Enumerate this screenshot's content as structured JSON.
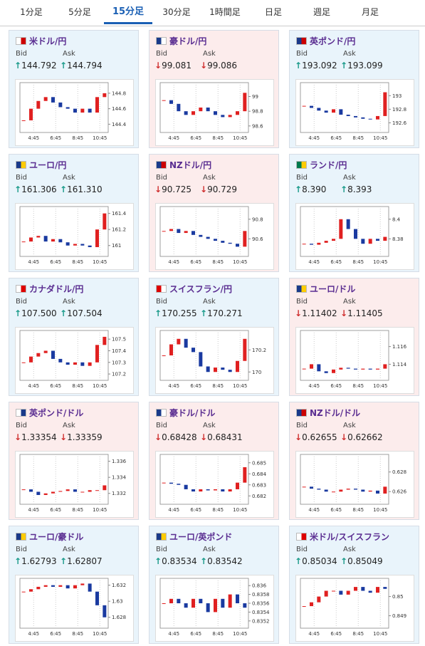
{
  "tabs": [
    "1分足",
    "5分足",
    "15分足",
    "30分足",
    "1時間足",
    "日足",
    "週足",
    "月足"
  ],
  "active_tab": 2,
  "bid_label": "Bid",
  "ask_label": "Ask",
  "xticks": [
    "4:45",
    "6:45",
    "8:45",
    "10:45"
  ],
  "cards": [
    {
      "name": "米ドル/円",
      "arrow": "↑",
      "bid": "144.792",
      "ask": "144.794",
      "ylim": [
        144.33,
        144.9
      ],
      "yticks": [
        144.8,
        144.6,
        144.4
      ],
      "closes": [
        144.45,
        144.6,
        144.7,
        144.75,
        144.68,
        144.62,
        144.6,
        144.55,
        144.6,
        144.55,
        144.75,
        144.8
      ]
    },
    {
      "name": "豪ドル/円",
      "arrow": "↓",
      "bid": "99.081",
      "ask": "99.086",
      "ylim": [
        98.55,
        99.15
      ],
      "yticks": [
        99,
        98.8,
        98.6
      ],
      "closes": [
        98.95,
        98.9,
        98.8,
        98.75,
        98.8,
        98.85,
        98.8,
        98.75,
        98.72,
        98.75,
        98.8,
        99.05
      ]
    },
    {
      "name": "英ポンド/円",
      "arrow": "↑",
      "bid": "193.092",
      "ask": "193.099",
      "ylim": [
        192.5,
        193.15
      ],
      "yticks": [
        193,
        192.8,
        192.6
      ],
      "closes": [
        192.85,
        192.82,
        192.78,
        192.75,
        192.8,
        192.72,
        192.7,
        192.68,
        192.66,
        192.65,
        192.7,
        193.05
      ]
    },
    {
      "name": "ユーロ/円",
      "arrow": "↑",
      "bid": "161.306",
      "ask": "161.310",
      "ylim": [
        160.9,
        161.45
      ],
      "yticks": [
        161.4,
        161.2,
        161
      ],
      "closes": [
        161.05,
        161.1,
        161.12,
        161.05,
        161.08,
        161.04,
        161.0,
        161.02,
        161.0,
        160.98,
        161.2,
        161.4
      ]
    },
    {
      "name": "NZドル/円",
      "arrow": "↓",
      "bid": "90.725",
      "ask": "90.729",
      "ylim": [
        90.45,
        90.9
      ],
      "yticks": [
        90.8,
        90.6
      ],
      "closes": [
        90.68,
        90.7,
        90.66,
        90.68,
        90.64,
        90.62,
        90.6,
        90.58,
        90.56,
        90.55,
        90.52,
        90.68
      ]
    },
    {
      "name": "ランド/円",
      "arrow": "↑",
      "bid": "8.390",
      "ask": "8.393",
      "ylim": [
        8.365,
        8.41
      ],
      "yticks": [
        8.4,
        8.38
      ],
      "closes": [
        8.375,
        8.374,
        8.376,
        8.378,
        8.38,
        8.4,
        8.39,
        8.38,
        8.375,
        8.38,
        8.378,
        8.382
      ]
    },
    {
      "name": "カナダドル/円",
      "arrow": "↑",
      "bid": "107.500",
      "ask": "107.504",
      "ylim": [
        107.17,
        107.55
      ],
      "yticks": [
        107.5,
        107.4,
        107.3,
        107.2
      ],
      "closes": [
        107.3,
        107.35,
        107.38,
        107.4,
        107.33,
        107.3,
        107.28,
        107.3,
        107.27,
        107.3,
        107.45,
        107.52
      ]
    },
    {
      "name": "スイスフラン/円",
      "arrow": "↑",
      "bid": "170.255",
      "ask": "170.271",
      "ylim": [
        169.95,
        170.35
      ],
      "yticks": [
        170.2,
        170
      ],
      "closes": [
        170.15,
        170.25,
        170.3,
        170.22,
        170.18,
        170.05,
        170.0,
        170.04,
        170.02,
        170.0,
        170.1,
        170.3
      ]
    },
    {
      "name": "ユーロ/ドル",
      "arrow": "↓",
      "bid": "1.11402",
      "ask": "1.11405",
      "ylim": [
        1.1125,
        1.1175
      ],
      "yticks": [
        1.116,
        1.114
      ],
      "closes": [
        1.1135,
        1.114,
        1.1132,
        1.113,
        1.1134,
        1.1136,
        1.1135,
        1.1134,
        1.1135,
        1.1134,
        1.1135,
        1.114
      ]
    },
    {
      "name": "英ポンド/ドル",
      "arrow": "↓",
      "bid": "1.33354",
      "ask": "1.33359",
      "ylim": [
        1.331,
        1.3365
      ],
      "yticks": [
        1.336,
        1.334,
        1.332
      ],
      "closes": [
        1.3325,
        1.3322,
        1.3318,
        1.332,
        1.3322,
        1.3323,
        1.3325,
        1.3322,
        1.3322,
        1.3324,
        1.3324,
        1.333
      ]
    },
    {
      "name": "豪ドル/ドル",
      "arrow": "↓",
      "bid": "0.68428",
      "ask": "0.68431",
      "ylim": [
        0.6815,
        0.6855
      ],
      "yticks": [
        0.685,
        0.684,
        0.683,
        0.682
      ],
      "closes": [
        0.6832,
        0.6831,
        0.683,
        0.6826,
        0.6824,
        0.6826,
        0.6825,
        0.6826,
        0.6824,
        0.6826,
        0.6832,
        0.6846
      ]
    },
    {
      "name": "NZドル/ドル",
      "arrow": "↓",
      "bid": "0.62655",
      "ask": "0.62662",
      "ylim": [
        0.625,
        0.6295
      ],
      "yticks": [
        0.628,
        0.626
      ],
      "closes": [
        0.6265,
        0.6263,
        0.6262,
        0.626,
        0.626,
        0.6262,
        0.6263,
        0.6262,
        0.626,
        0.6261,
        0.6258,
        0.6265
      ]
    },
    {
      "name": "ユーロ/豪ドル",
      "arrow": "↑",
      "bid": "1.62793",
      "ask": "1.62807",
      "ylim": [
        1.627,
        1.6325
      ],
      "yticks": [
        1.632,
        1.63,
        1.628
      ],
      "closes": [
        1.6312,
        1.6315,
        1.6318,
        1.632,
        1.6318,
        1.632,
        1.6316,
        1.632,
        1.6322,
        1.6312,
        1.6295,
        1.628
      ]
    },
    {
      "name": "ユーロ/英ポンド",
      "arrow": "↑",
      "bid": "0.83534",
      "ask": "0.83542",
      "ylim": [
        0.8351,
        0.8361
      ],
      "yticks": [
        0.836,
        0.8358,
        0.8356,
        0.8354,
        0.8352
      ],
      "closes": [
        0.8356,
        0.8357,
        0.8356,
        0.8355,
        0.8357,
        0.8356,
        0.8354,
        0.8357,
        0.8355,
        0.8358,
        0.8356,
        0.8355
      ]
    },
    {
      "name": "米ドル/スイスフラン",
      "arrow": "↑",
      "bid": "0.85034",
      "ask": "0.85049",
      "ylim": [
        0.8485,
        0.8508
      ],
      "yticks": [
        0.85,
        0.849
      ],
      "closes": [
        0.8495,
        0.8497,
        0.85,
        0.8503,
        0.8503,
        0.8501,
        0.8503,
        0.8505,
        0.8503,
        0.8502,
        0.8505,
        0.8504
      ]
    }
  ]
}
